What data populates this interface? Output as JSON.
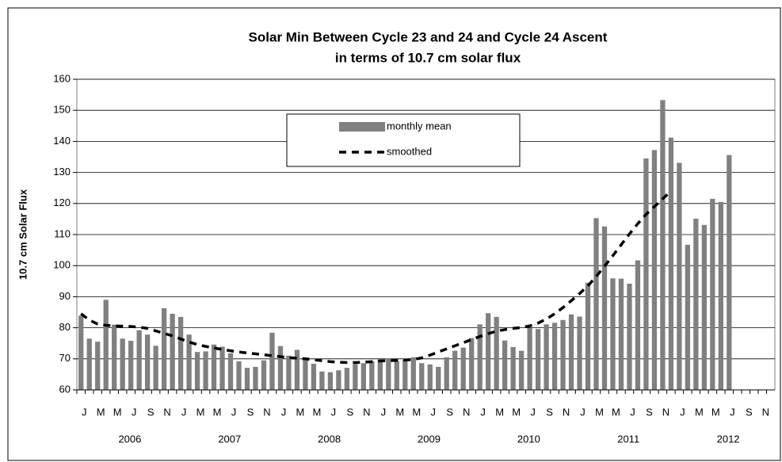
{
  "chart_data": {
    "type": "bar",
    "title": "Solar Min Between Cycle 23 and 24 and Cycle 24 Ascent",
    "subtitle": "in terms of 10.7 cm solar flux",
    "y_label": "10.7 cm  Solar Flux",
    "categories": [
      "J",
      null,
      "M",
      null,
      "M",
      null,
      "J",
      null,
      "S",
      null,
      "N",
      null,
      "J",
      null,
      "M",
      null,
      "M",
      null,
      "J",
      null,
      "S",
      null,
      "N",
      null,
      "J",
      null,
      "M",
      null,
      "M",
      null,
      "J",
      null,
      "S",
      null,
      "N",
      null,
      "J",
      null,
      "M",
      null,
      "M",
      null,
      "J",
      null,
      "S",
      null,
      "N",
      null,
      "J",
      null,
      "M",
      null,
      "M",
      null,
      "J",
      null,
      "S",
      null,
      "N",
      null,
      "J",
      null,
      "M",
      null,
      "M",
      null,
      "J",
      null,
      "S",
      null,
      "N",
      null,
      "J",
      null,
      "M",
      null,
      "M",
      null,
      "J",
      null,
      "S",
      null,
      "N",
      null
    ],
    "years": [
      "2006",
      "2007",
      "2008",
      "2009",
      "2010",
      "2011",
      "2012"
    ],
    "series": [
      {
        "name": "monthly mean",
        "type": "bar",
        "color": "#808080",
        "values": [
          83.9,
          76.5,
          75.5,
          89.0,
          81.0,
          76.5,
          75.8,
          79.2,
          77.8,
          74.2,
          86.3,
          84.5,
          83.5,
          77.8,
          72.2,
          72.4,
          74.6,
          73.9,
          71.8,
          69.2,
          67.1,
          67.4,
          69.5,
          78.4,
          74.1,
          71.0,
          72.9,
          70.4,
          68.4,
          65.9,
          65.7,
          66.3,
          67.1,
          68.3,
          68.6,
          69.2,
          69.8,
          70.0,
          69.2,
          69.7,
          70.5,
          68.6,
          68.2,
          67.4,
          70.5,
          72.6,
          73.6,
          76.7,
          81.1,
          84.7,
          83.5,
          75.9,
          73.8,
          72.6,
          79.9,
          79.6,
          81.1,
          81.6,
          82.5,
          84.3,
          83.6,
          94.5,
          115.3,
          112.6,
          95.9,
          95.8,
          94.2,
          101.7,
          134.5,
          137.2,
          153.3,
          141.2,
          133.1,
          106.7,
          115.1,
          113.1,
          121.5,
          120.5,
          135.6,
          null,
          null,
          null,
          null,
          null
        ]
      },
      {
        "name": "smoothed",
        "type": "line",
        "color": "#000000",
        "values": [
          84.5,
          82.5,
          81.2,
          80.8,
          80.6,
          80.5,
          80.4,
          80.2,
          79.8,
          79.0,
          78.2,
          77.4,
          76.4,
          75.4,
          74.6,
          74.0,
          73.5,
          73.0,
          72.6,
          72.2,
          71.9,
          71.6,
          71.3,
          71.0,
          70.7,
          70.4,
          70.2,
          70.0,
          69.7,
          69.4,
          69.1,
          68.9,
          68.8,
          68.8,
          68.9,
          69.1,
          69.3,
          69.4,
          69.5,
          69.6,
          69.8,
          70.3,
          71.2,
          72.2,
          73.2,
          74.2,
          75.2,
          76.2,
          77.2,
          78.1,
          78.9,
          79.4,
          79.8,
          80.1,
          80.6,
          81.5,
          82.8,
          84.5,
          86.5,
          88.7,
          91.0,
          93.5,
          96.5,
          99.8,
          103.2,
          106.7,
          110.2,
          113.5,
          116.5,
          119.0,
          121.5,
          124.0,
          null,
          null,
          null,
          null,
          null,
          null,
          null,
          null,
          null,
          null,
          null,
          null
        ]
      }
    ],
    "ylim": [
      60,
      160
    ],
    "yticks": [
      60,
      70,
      80,
      90,
      100,
      110,
      120,
      130,
      140,
      150,
      160
    ],
    "grid": true
  }
}
